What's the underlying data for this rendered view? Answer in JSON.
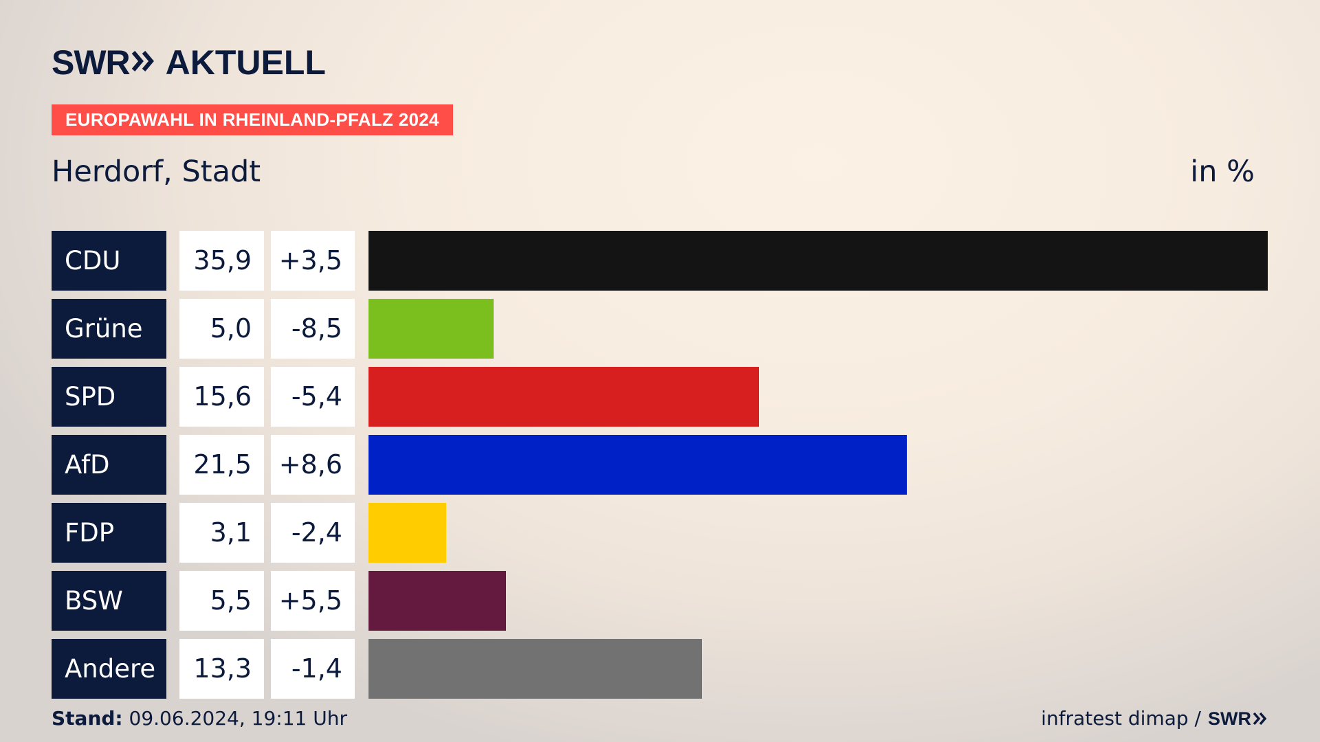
{
  "header": {
    "logo_swr": "SWR",
    "logo_aktuell": "AKTUELL",
    "badge": "EUROPAWAHL IN RHEINLAND-PFALZ 2024",
    "location": "Herdorf, Stadt",
    "unit": "in %"
  },
  "chart_data": {
    "type": "bar",
    "orientation": "horizontal",
    "categories": [
      "CDU",
      "Grüne",
      "SPD",
      "AfD",
      "FDP",
      "BSW",
      "Andere"
    ],
    "values": [
      35.9,
      5.0,
      15.6,
      21.5,
      3.1,
      5.5,
      13.3
    ],
    "value_labels": [
      "35,9",
      "5,0",
      "15,6",
      "21,5",
      "3,1",
      "5,5",
      "13,3"
    ],
    "changes": [
      3.5,
      -8.5,
      -5.4,
      8.6,
      -2.4,
      5.5,
      -1.4
    ],
    "change_labels": [
      "+3,5",
      "-8,5",
      "-5,4",
      "+8,6",
      "-2,4",
      "+5,5",
      "-1,4"
    ],
    "colors": [
      "#141414",
      "#7bbf1e",
      "#d71f1f",
      "#0021c6",
      "#ffcc00",
      "#64193e",
      "#727272"
    ],
    "xlim": [
      0,
      35.9
    ]
  },
  "footer": {
    "stand_label": "Stand:",
    "stand_value": "09.06.2024, 19:11 Uhr",
    "source": "infratest dimap /",
    "source_logo": "SWR"
  },
  "colors": {
    "navy": "#0c1a3c",
    "badge": "#ff4d48"
  }
}
